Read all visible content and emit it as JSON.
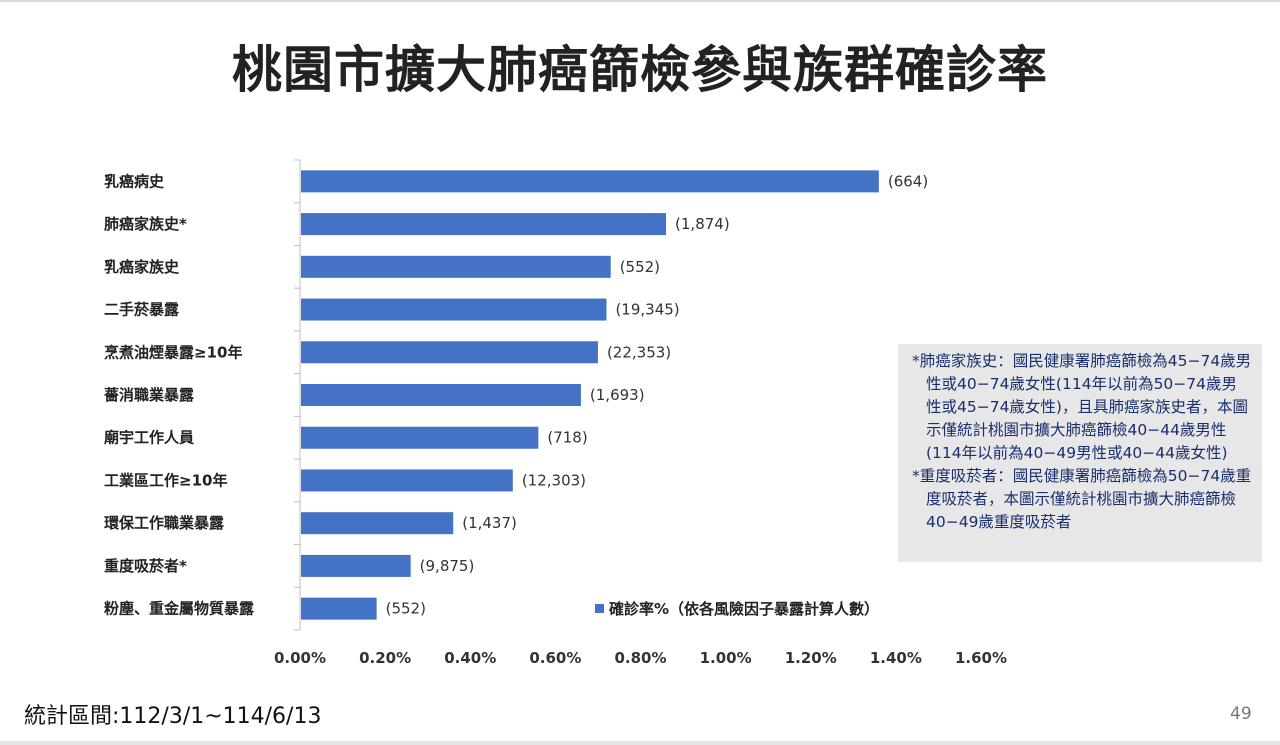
{
  "page": {
    "title": "桃園市擴大肺癌篩檢參與族群確診率",
    "stat_period": "統計區間:112/3/1~114/6/13",
    "page_number": "49"
  },
  "colors": {
    "bar": "#4472C4",
    "note_bg": "#E7E7E7",
    "note_text": "#1A2F6E"
  },
  "note": {
    "items": [
      "*肺癌家族史：國民健康署肺癌篩檢為45−74歲男性或40−74歲女性(114年以前為50−74歲男性或45−74歲女性)，且具肺癌家族史者，本圖示僅統計桃園市擴大肺癌篩檢40−44歲男性(114年以前為40−49男性或40−44歲女性)",
      "*重度吸菸者：國民健康署肺癌篩檢為50−74歲重度吸菸者，本圖示僅統計桃園市擴大肺癌篩檢40−49歲重度吸菸者"
    ]
  },
  "chart_data": {
    "type": "bar",
    "orientation": "horizontal",
    "title": "桃園市擴大肺癌篩檢參與族群確診率",
    "categories": [
      "乳癌病史",
      "肺癌家族史*",
      "乳癌家族史",
      "二手菸暴露",
      "烹煮油煙暴露≥10年",
      "薔消職業暴露",
      "廟宇工作人員",
      "工業區工作≥10年",
      "環保工作職業暴露",
      "重度吸菸者*",
      "粉塵、重金屬物質暴露"
    ],
    "series": [
      {
        "name": "確診率%（依各風險因子暴露計算人數）",
        "values": [
          1.36,
          0.86,
          0.73,
          0.72,
          0.7,
          0.66,
          0.56,
          0.5,
          0.36,
          0.26,
          0.18
        ],
        "data_labels": [
          "(664)",
          "(1,874)",
          "(552)",
          "(19,345)",
          "(22,353)",
          "(1,693)",
          "(718)",
          "(12,303)",
          "(1,437)",
          "(9,875)",
          "(552)"
        ]
      }
    ],
    "x_ticks": [
      "0.00%",
      "0.20%",
      "0.40%",
      "0.60%",
      "0.80%",
      "1.00%",
      "1.20%",
      "1.40%",
      "1.60%"
    ],
    "xlim": [
      0,
      1.6
    ],
    "grid": false,
    "legend_position": "inside-right"
  }
}
